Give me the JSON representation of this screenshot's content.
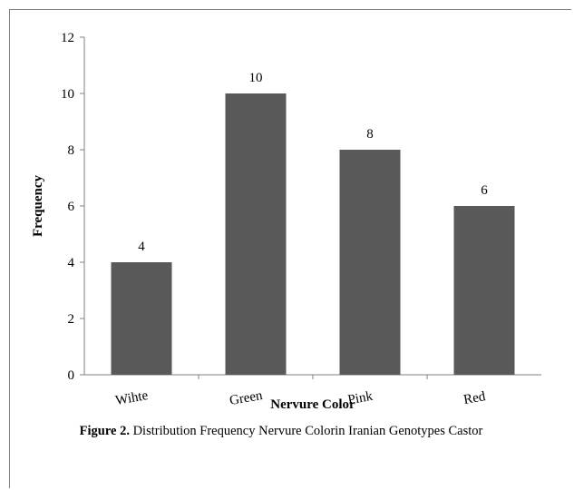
{
  "chart_data": {
    "type": "bar",
    "categories": [
      "Wihte",
      "Green",
      "Pink",
      "Red"
    ],
    "values": [
      4,
      10,
      8,
      6
    ],
    "data_labels": [
      "4",
      "10",
      "8",
      "6"
    ],
    "xlabel": "Nervure Color",
    "ylabel": "Frequency",
    "ylim": [
      0,
      12
    ],
    "yticks": [
      "0",
      "2",
      "4",
      "6",
      "8",
      "10",
      "12"
    ],
    "bar_color": "#595959",
    "grid": false,
    "legend": "none"
  },
  "caption": {
    "label": "Figure 2.",
    "text": "Distribution Frequency Nervure Colorin  Iranian Genotypes Castor"
  }
}
